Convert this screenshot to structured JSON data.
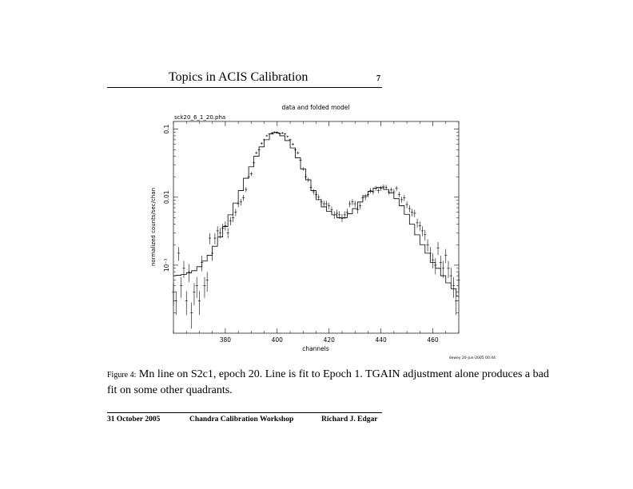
{
  "header": {
    "title": "Topics in ACIS Calibration",
    "page_number": "7"
  },
  "chart_data": {
    "type": "line",
    "title": "data and folded model",
    "subtitle": "sck20_6_1_20.pha",
    "xlabel": "channels",
    "ylabel": "normalized counts/sec/chan",
    "xlim": [
      360,
      470
    ],
    "ylim": [
      0.0001,
      0.13
    ],
    "log_y": true,
    "x_ticks": [
      380,
      400,
      420,
      440,
      460
    ],
    "x_tick_labels": [
      "380",
      "400",
      "420",
      "440",
      "460"
    ],
    "y_ticks": [
      0.001,
      0.01,
      0.1
    ],
    "y_tick_labels": [
      "10⁻³",
      "0.01",
      "0.1"
    ],
    "stamp": "dewey 20-Jun-2005 00:44",
    "series": [
      {
        "kind": "data",
        "style": "crosses",
        "x": [
          360,
          361,
          362,
          363,
          364,
          365,
          366,
          367,
          368,
          369,
          370,
          371,
          372,
          373,
          374,
          375,
          376,
          377,
          378,
          379,
          380,
          381,
          382,
          383,
          384,
          385,
          386,
          387,
          388,
          389,
          390,
          391,
          392,
          393,
          394,
          395,
          396,
          397,
          398,
          399,
          400,
          401,
          402,
          403,
          404,
          405,
          406,
          407,
          408,
          409,
          410,
          411,
          412,
          413,
          414,
          415,
          416,
          417,
          418,
          419,
          420,
          421,
          422,
          423,
          424,
          425,
          426,
          427,
          428,
          429,
          430,
          431,
          432,
          433,
          434,
          435,
          436,
          437,
          438,
          439,
          440,
          441,
          442,
          443,
          444,
          445,
          446,
          447,
          448,
          449,
          450,
          451,
          452,
          453,
          454,
          455,
          456,
          457,
          458,
          459,
          460,
          461,
          462,
          463,
          464,
          465,
          466,
          467,
          468,
          469,
          470
        ],
        "y": [
          0.0004,
          0.0003,
          0.0015,
          0.0005,
          0.0009,
          0.0003,
          0.0008,
          0.0002,
          0.0004,
          0.0005,
          0.0003,
          0.0011,
          0.0005,
          0.0006,
          0.0025,
          0.0015,
          0.0025,
          0.0032,
          0.003,
          0.0035,
          0.0038,
          0.003,
          0.0045,
          0.005,
          0.006,
          0.008,
          0.0085,
          0.0098,
          0.013,
          0.02,
          0.022,
          0.032,
          0.045,
          0.05,
          0.062,
          0.07,
          0.08,
          0.085,
          0.088,
          0.09,
          0.09,
          0.085,
          0.088,
          0.085,
          0.078,
          0.07,
          0.06,
          0.05,
          0.045,
          0.035,
          0.026,
          0.02,
          0.018,
          0.014,
          0.012,
          0.011,
          0.01,
          0.0085,
          0.008,
          0.008,
          0.0075,
          0.0065,
          0.0055,
          0.0058,
          0.0055,
          0.005,
          0.0055,
          0.006,
          0.008,
          0.0085,
          0.008,
          0.0065,
          0.0075,
          0.0098,
          0.01,
          0.011,
          0.0125,
          0.012,
          0.0135,
          0.0125,
          0.0135,
          0.0142,
          0.014,
          0.012,
          0.0128,
          0.012,
          0.0135,
          0.011,
          0.0092,
          0.0098,
          0.0078,
          0.0068,
          0.006,
          0.0058,
          0.0042,
          0.0038,
          0.0032,
          0.0028,
          0.002,
          0.0015,
          0.0012,
          0.001,
          0.0018,
          0.0011,
          0.0009,
          0.0014,
          0.0009,
          0.0007,
          0.0005,
          0.0003,
          0.0006
        ]
      },
      {
        "kind": "model",
        "style": "step",
        "x": [
          360,
          362,
          364,
          366,
          368,
          370,
          372,
          374,
          376,
          378,
          380,
          382,
          384,
          386,
          388,
          390,
          392,
          394,
          396,
          398,
          399,
          400,
          402,
          404,
          406,
          408,
          410,
          412,
          414,
          416,
          418,
          420,
          422,
          424,
          425,
          426,
          428,
          430,
          432,
          434,
          436,
          438,
          439,
          440,
          442,
          444,
          446,
          448,
          450,
          452,
          454,
          456,
          458,
          460,
          462,
          464,
          466,
          468,
          470
        ],
        "y": [
          0.0007,
          0.00071,
          0.00073,
          0.00077,
          0.00083,
          0.00095,
          0.00115,
          0.0014,
          0.0019,
          0.0026,
          0.0037,
          0.0055,
          0.0082,
          0.0125,
          0.019,
          0.028,
          0.04,
          0.055,
          0.07,
          0.085,
          0.09,
          0.088,
          0.08,
          0.068,
          0.053,
          0.038,
          0.026,
          0.018,
          0.0125,
          0.0092,
          0.0072,
          0.0062,
          0.0055,
          0.005,
          0.0049,
          0.005,
          0.0057,
          0.0068,
          0.0085,
          0.0105,
          0.0122,
          0.0136,
          0.014,
          0.0138,
          0.013,
          0.0115,
          0.0095,
          0.0075,
          0.0056,
          0.004,
          0.0028,
          0.002,
          0.0015,
          0.0011,
          0.0009,
          0.0007,
          0.00055,
          0.00045,
          0.00035
        ]
      }
    ]
  },
  "caption": {
    "label": "Figure 4:",
    "text": "Mn line on S2c1, epoch 20.  Line is fit to Epoch 1.  TGAIN adjustment alone produces a bad fit on some other quadrants."
  },
  "footer": {
    "date": "31 October 2005",
    "event": "Chandra Calibration Workshop",
    "author": "Richard J. Edgar"
  }
}
